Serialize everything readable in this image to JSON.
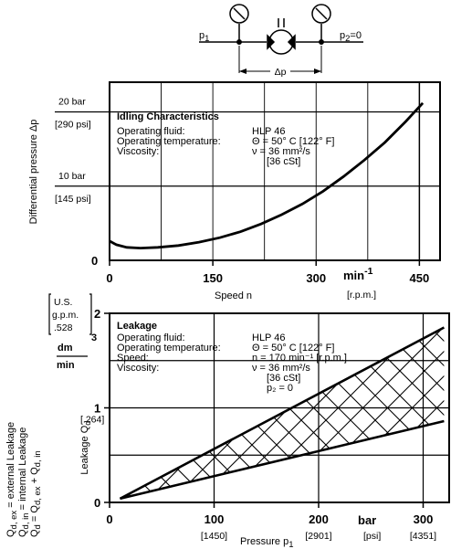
{
  "circuit": {
    "p1": "p",
    "p1_sub": "1",
    "p2": "p",
    "p2_sub": "2",
    "p2_val": "=0",
    "dp": "Δp"
  },
  "chart_data": [
    {
      "type": "line",
      "title": "Idling Characteristics",
      "ylabel": "Differential pressure Δp",
      "xlabel": "Speed n",
      "x_unit": "min",
      "x_unit_exp": "-1",
      "x_unit_alt": "[r.p.m.]",
      "xlim": [
        0,
        480
      ],
      "ylim": [
        0,
        24
      ],
      "x_ticks": [
        0,
        150,
        300,
        450
      ],
      "x_tick_labels": [
        "0",
        "150",
        "300",
        "450"
      ],
      "x_grid": [
        75,
        150,
        225,
        300,
        375,
        450
      ],
      "y_ticks": [
        {
          "value": 0,
          "label": "0",
          "alt": ""
        },
        {
          "value": 10,
          "label": "10 bar",
          "alt": "[145 psi]"
        },
        {
          "value": 20,
          "label": "20 bar",
          "alt": "[290 psi]"
        }
      ],
      "info": [
        {
          "label": "Operating fluid:",
          "value": "HLP 46"
        },
        {
          "label": "Operating temperature:",
          "value": "Θ = 50° C [122° F]"
        },
        {
          "label": "Viscosity:",
          "value": "ν = 36 mm²/s"
        },
        {
          "label": "",
          "value": "[36 cSt]"
        }
      ],
      "series": [
        {
          "x": [
            0,
            10,
            25,
            45,
            70,
            100,
            130,
            160,
            190,
            220,
            250,
            280,
            310,
            340,
            370,
            400,
            430,
            455
          ],
          "y": [
            2.6,
            2.1,
            1.75,
            1.65,
            1.75,
            2.0,
            2.45,
            3.05,
            3.85,
            4.9,
            6.15,
            7.6,
            9.3,
            11.3,
            13.5,
            15.9,
            18.7,
            21.2
          ]
        }
      ]
    },
    {
      "type": "area",
      "title": "Leakage",
      "ylabel": "Leakage Q",
      "ylabel_sub": "d",
      "xlabel": "Pressure p",
      "xlabel_sub": "1",
      "x_unit": "bar",
      "x_unit_alt": "[psi]",
      "xlim": [
        0,
        325
      ],
      "ylim": [
        0,
        2
      ],
      "x_ticks": [
        0,
        100,
        200,
        300
      ],
      "x_tick_labels": [
        "0",
        "100",
        "200",
        "300"
      ],
      "x_tick_alt": [
        "",
        "[1450]",
        "[2901]",
        "[4351]"
      ],
      "x_grid": [
        100,
        200,
        300
      ],
      "y_ticks": [
        {
          "value": 0,
          "label": "0",
          "alt": ""
        },
        {
          "value": 1,
          "label": "1",
          "alt": "[.264]"
        },
        {
          "value": 2,
          "label": "2",
          "alt": ""
        }
      ],
      "y_grid": [
        0.5,
        1.0,
        1.5
      ],
      "y_unit_top": "dm",
      "y_unit_top_exp": "3",
      "y_unit_bottom": "min",
      "y_alt_unit": [
        "U.S.",
        "g.p.m.",
        ".528"
      ],
      "info": [
        {
          "label": "Operating fluid:",
          "value": "HLP 46"
        },
        {
          "label": "Operating temperature:",
          "value": "Θ = 50° C [122° F]"
        },
        {
          "label": "Speed:",
          "value": "n = 170 min⁻¹ [r.p.m.]"
        },
        {
          "label": "Viscosity:",
          "value": "ν = 36 mm²/s"
        },
        {
          "label": "",
          "value": "[36 cSt]"
        },
        {
          "label": "",
          "value": "p₂ = 0"
        }
      ],
      "legend": [
        {
          "symbol": "Q",
          "sub": "d, ex",
          "text": "= external Leakage"
        },
        {
          "symbol": "Q",
          "sub": "d, in",
          "text": "= internal Leakage"
        },
        {
          "symbol": "Q",
          "sub": "d",
          "text": "= Q",
          "sub2": "d, ex",
          "text2": "+ Q",
          "sub3": "d, in"
        }
      ],
      "series": [
        {
          "name": "",
          "x": [
            10,
            320
          ],
          "y": [
            0.04,
            1.85
          ]
        },
        {
          "name": "",
          "x": [
            10,
            320
          ],
          "y": [
            0.04,
            0.86
          ]
        }
      ]
    }
  ]
}
